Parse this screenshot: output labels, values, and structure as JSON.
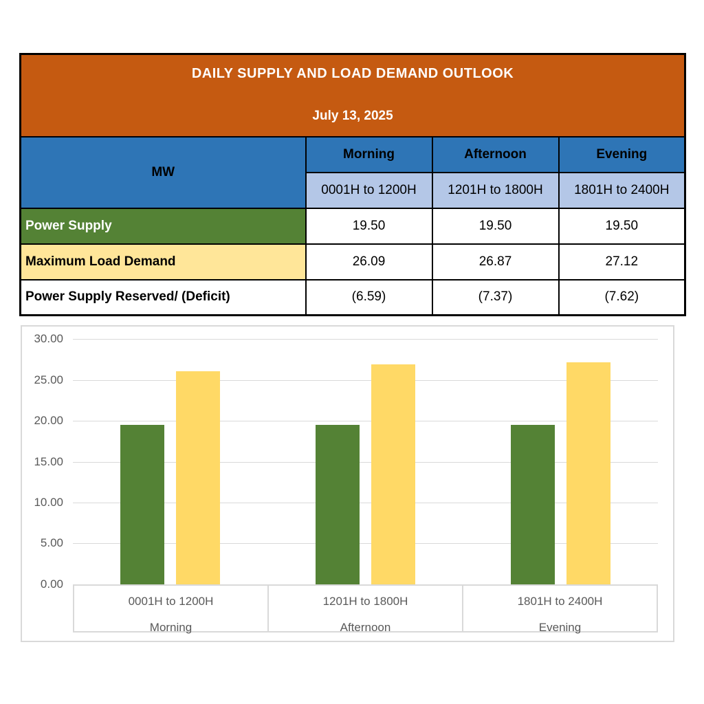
{
  "table": {
    "title": "DAILY SUPPLY AND LOAD DEMAND OUTLOOK",
    "date": "July 13, 2025",
    "unit_label": "MW",
    "columns": [
      {
        "period": "Morning",
        "hours": "0001H to 1200H"
      },
      {
        "period": "Afternoon",
        "hours": "1201H to 1800H"
      },
      {
        "period": "Evening",
        "hours": "1801H to 2400H"
      }
    ],
    "rows": [
      {
        "label": "Power Supply",
        "values": [
          "19.50",
          "19.50",
          "19.50"
        ]
      },
      {
        "label": "Maximum Load Demand",
        "values": [
          "26.09",
          "26.87",
          "27.12"
        ]
      },
      {
        "label": "Power Supply Reserved/ (Deficit)",
        "values": [
          "(6.59)",
          "(7.37)",
          "(7.62)"
        ]
      }
    ]
  },
  "colors": {
    "header_orange": "#C55A11",
    "header_blue": "#2E75B6",
    "subheader_light_blue": "#B4C7E7",
    "supply_green": "#548235",
    "demand_light_yellow": "#FFE699",
    "bar_green": "#548235",
    "bar_yellow": "#FFD966",
    "grid_gray": "#D9D9D9",
    "axis_text_gray": "#595959"
  },
  "chart_data": {
    "type": "bar",
    "categories": [
      {
        "hours": "0001H to 1200H",
        "period": "Morning"
      },
      {
        "hours": "1201H to 1800H",
        "period": "Afternoon"
      },
      {
        "hours": "1801H to 2400H",
        "period": "Evening"
      }
    ],
    "series": [
      {
        "name": "Power Supply",
        "color": "#548235",
        "values": [
          19.5,
          19.5,
          19.5
        ]
      },
      {
        "name": "Maximum Load Demand",
        "color": "#FFD966",
        "values": [
          26.09,
          26.87,
          27.12
        ]
      }
    ],
    "title": "",
    "xlabel": "",
    "ylabel": "",
    "ylim": [
      0,
      30
    ],
    "ytick_step": 5,
    "yticks": [
      "30.00",
      "25.00",
      "20.00",
      "15.00",
      "10.00",
      "5.00",
      "0.00"
    ],
    "grid": true,
    "legend": "none"
  }
}
